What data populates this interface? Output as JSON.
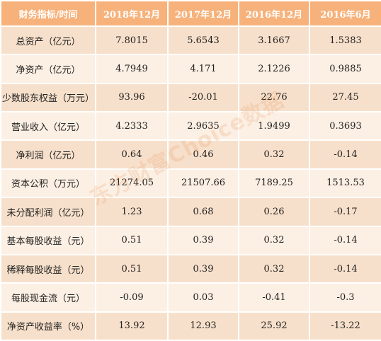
{
  "colors": {
    "header_bg": "#f7b27b",
    "row_odd_bg": "#f7e0cb",
    "row_even_bg": "#fcefe3",
    "watermark": "#e68c46"
  },
  "table": {
    "headers": [
      "财务指标/时间",
      "2018年12月",
      "2017年12月",
      "2016年12月",
      "2016年6月"
    ],
    "rows": [
      [
        "总资产（亿元）",
        "7.8015",
        "5.6543",
        "3.1667",
        "1.5383"
      ],
      [
        "净资产（亿元）",
        "4.7949",
        "4.171",
        "2.1226",
        "0.9885"
      ],
      [
        "少数股东权益（万元）",
        "93.96",
        "-20.01",
        "22.76",
        "27.45"
      ],
      [
        "营业收入（亿元）",
        "4.2333",
        "2.9635",
        "1.9499",
        "0.3693"
      ],
      [
        "净利润（亿元）",
        "0.64",
        "0.46",
        "0.32",
        "-0.14"
      ],
      [
        "资本公积（万元）",
        "21274.05",
        "21507.66",
        "7189.25",
        "1513.53"
      ],
      [
        "未分配利润（亿元）",
        "1.23",
        "0.68",
        "0.26",
        "-0.17"
      ],
      [
        "基本每股收益（元）",
        "0.51",
        "0.39",
        "0.32",
        "-0.14"
      ],
      [
        "稀释每股收益（元）",
        "0.51",
        "0.39",
        "0.32",
        "-0.14"
      ],
      [
        "每股现金流（元）",
        "-0.09",
        "0.03",
        "-0.41",
        "-0.3"
      ],
      [
        "净资产收益率（%）",
        "13.92",
        "12.93",
        "25.92",
        "-13.22"
      ]
    ]
  },
  "watermark_text": "东方财富Choice数据"
}
